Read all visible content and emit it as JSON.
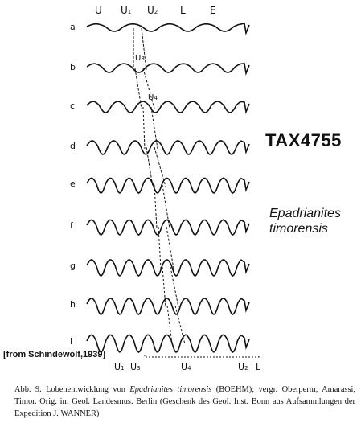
{
  "top_labels": [
    "U",
    "U",
    "U",
    "L",
    "E"
  ],
  "top_label_subs": [
    "",
    "1",
    "2",
    "",
    ""
  ],
  "rows": [
    "a",
    "b",
    "c",
    "d",
    "e",
    "f",
    "g",
    "h",
    "i"
  ],
  "marker_labels": [
    {
      "base": "U",
      "sub": "3"
    },
    {
      "base": "U",
      "sub": "4"
    }
  ],
  "bottom_labels": [
    {
      "base": "U",
      "sub": "1"
    },
    {
      "base": "U",
      "sub": "3"
    },
    {
      "base": "U",
      "sub": "4"
    },
    {
      "base": "U",
      "sub": "2"
    },
    {
      "base": "L",
      "sub": ""
    }
  ],
  "catalog_id": "TAX4755",
  "species_line1": "Epadrianites",
  "species_line2": "timorensis",
  "source": "[from Schindewolf,1939]",
  "caption": {
    "prefix": "Abb. 9. Lobenentwicklung von ",
    "genus": "Epadrianites timorensis",
    "middle": " (BOEHM); vergr. Oberperm, Amarassi, Timor. Orig. im Geol. Landesmus. Berlin (Geschenk des Geol. Inst. Bonn aus Aufsammlungen der Expedition J. ",
    "collector": "WANNER",
    "suffix": ")"
  }
}
